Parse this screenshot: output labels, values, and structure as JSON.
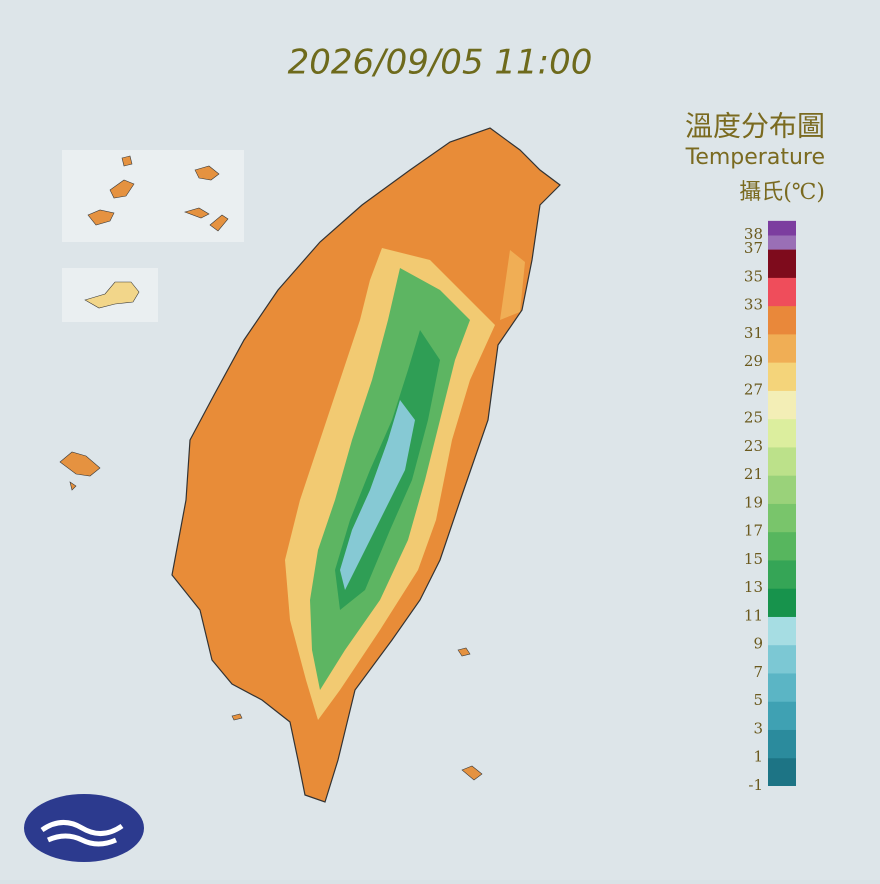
{
  "header": {
    "timestamp": "2026/09/05 11:00",
    "title_zh": "溫度分布圖",
    "title_en": "Temperature",
    "unit": "攝氏(℃)"
  },
  "legend": {
    "ticks": [
      -1,
      1,
      3,
      5,
      7,
      9,
      11,
      13,
      15,
      17,
      19,
      21,
      23,
      25,
      27,
      29,
      31,
      33,
      35,
      37,
      38
    ],
    "colors": [
      "#1d7485",
      "#2b8b9d",
      "#3fa1b3",
      "#5bb5c5",
      "#7cc8d4",
      "#a6dde3",
      "#17934c",
      "#35a556",
      "#57b65e",
      "#79c56b",
      "#9ad27a",
      "#bce18a",
      "#dcee9e",
      "#f3eeb6",
      "#f4d47a",
      "#f0ae55",
      "#e9883a",
      "#ef4d5b",
      "#7e0b1c",
      "#9a6fb6",
      "#7c3d9f"
    ]
  }
}
